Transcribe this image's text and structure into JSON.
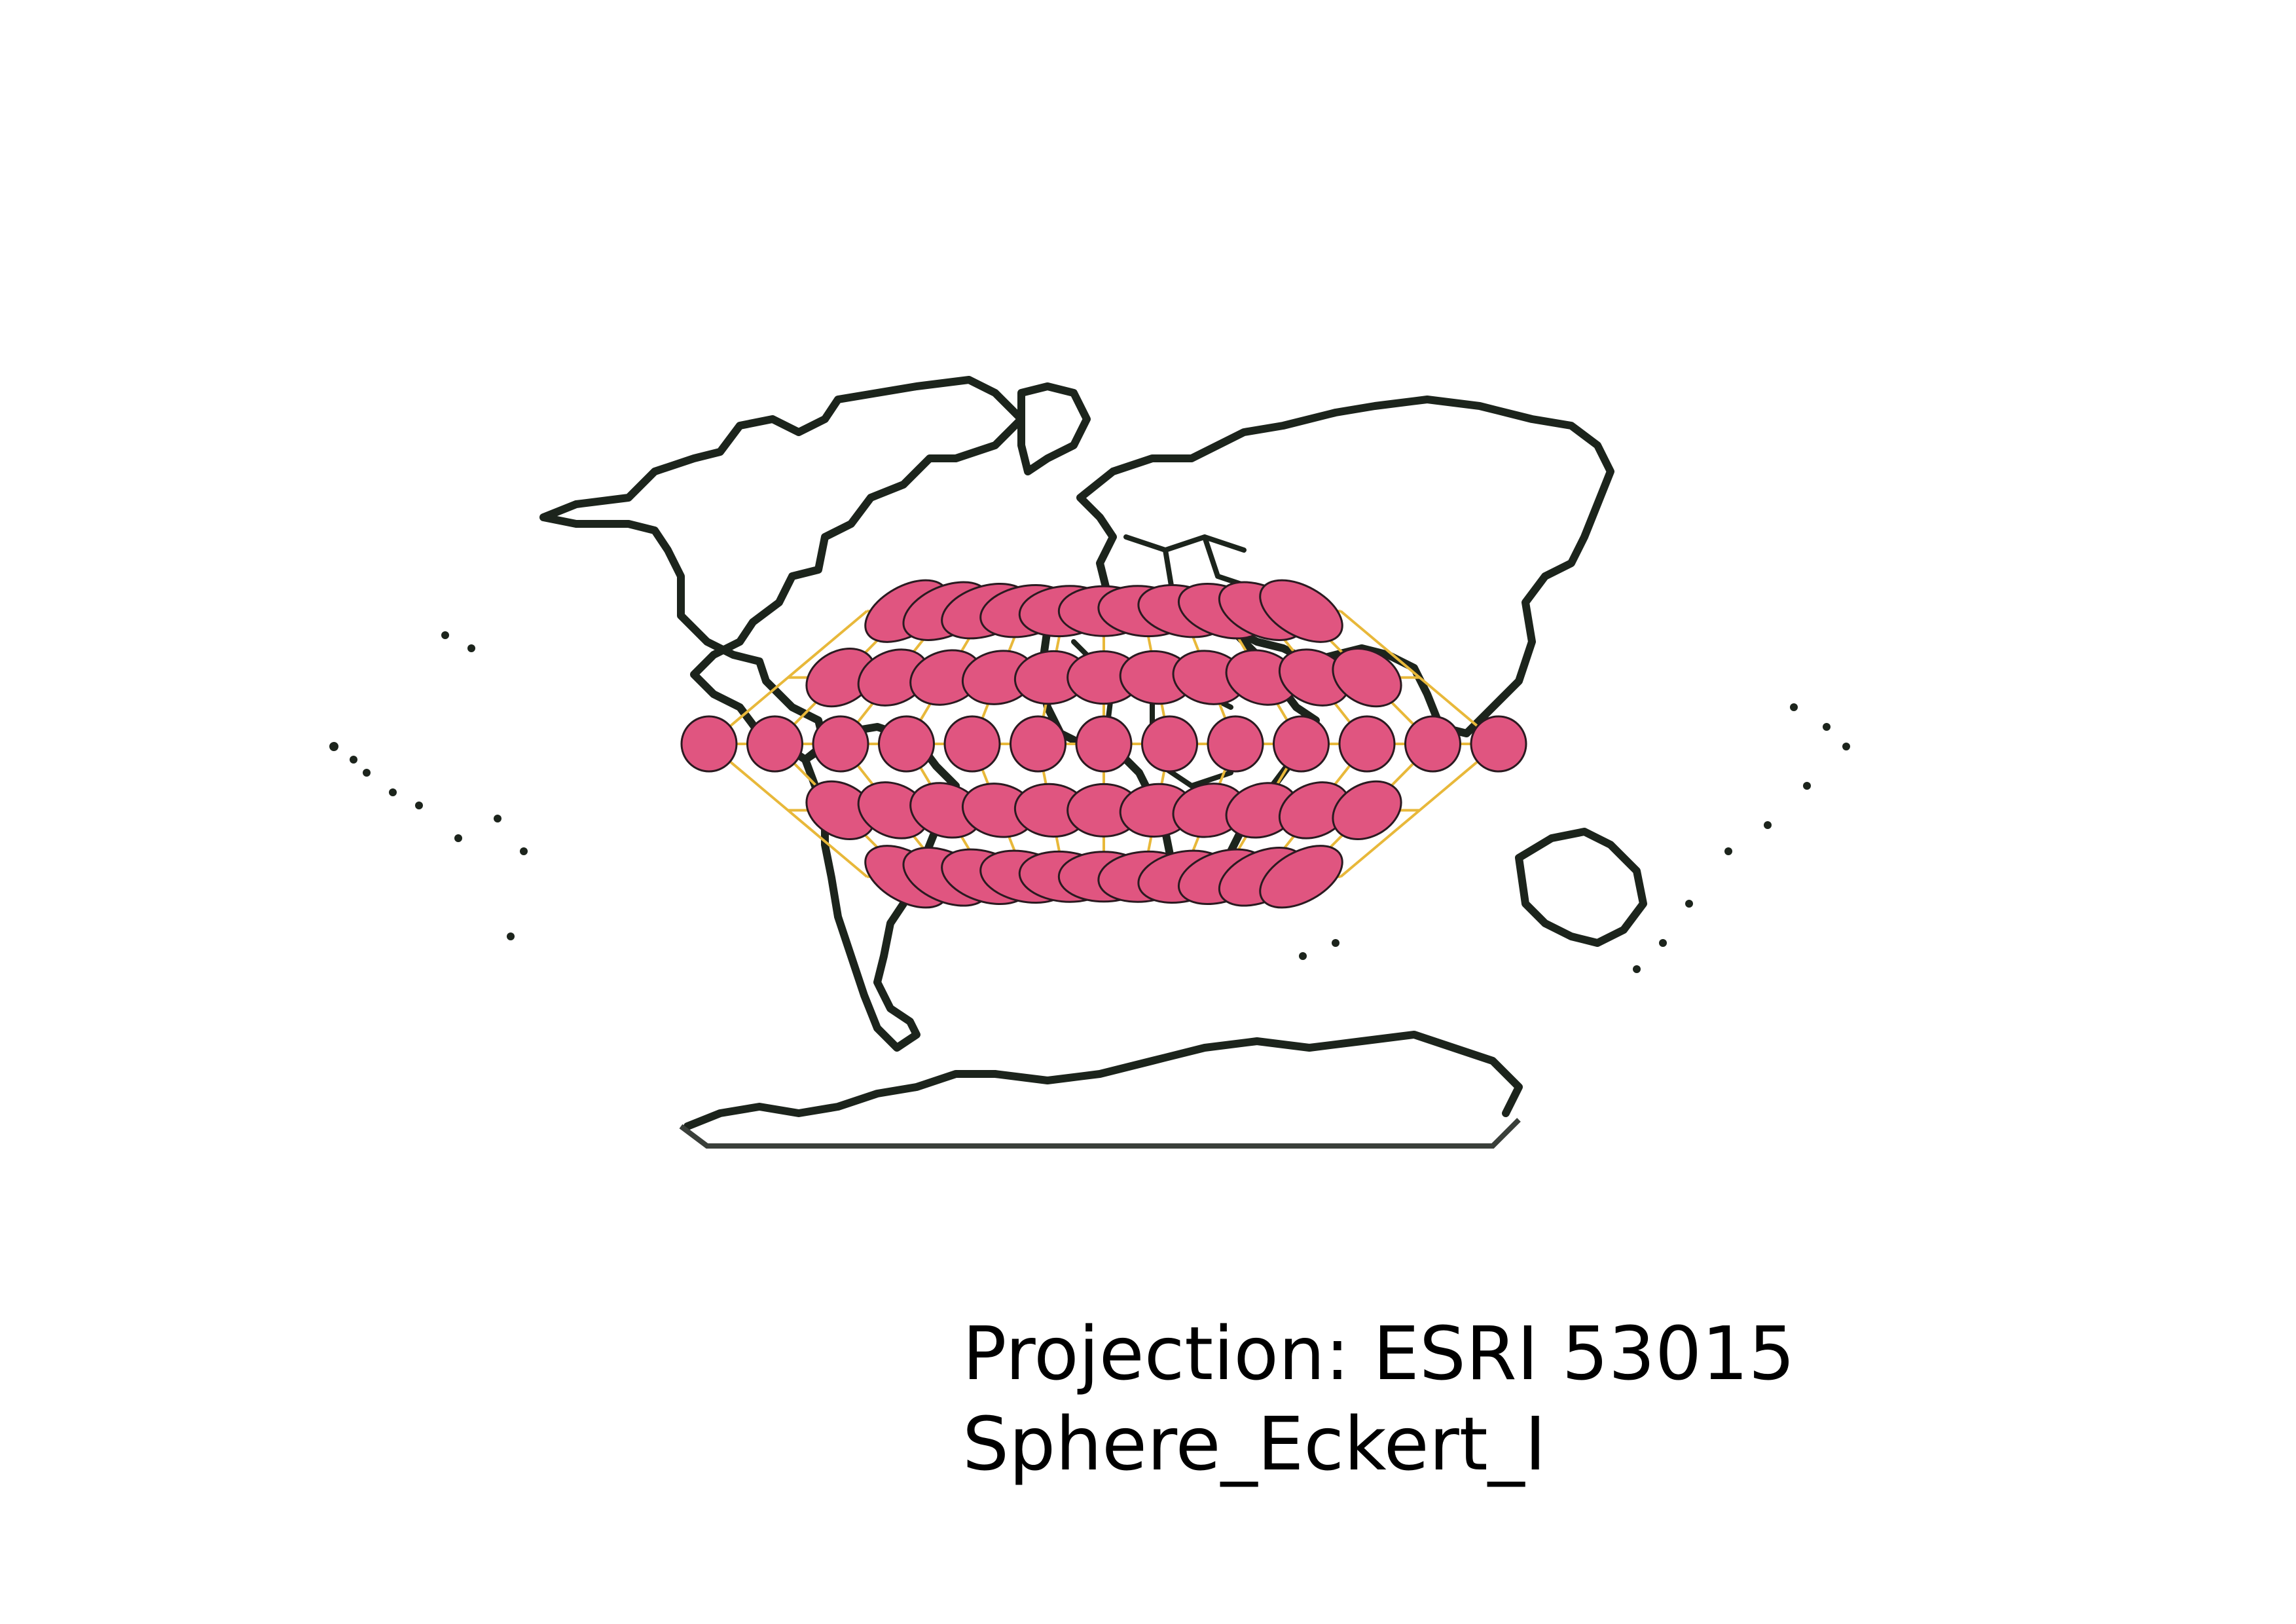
{
  "caption": {
    "line1": "Projection: ESRI 53015",
    "line2": "Sphere_Eckert_I"
  },
  "map": {
    "projection": "Eckert I",
    "graticule_color": "#e8b83a",
    "indicatrix_fill": "#e05580",
    "indicatrix_stroke": "#2a1a20",
    "coastline_color": "#1c241c",
    "indicatrix_longitudes": [
      -150,
      -120,
      -90,
      -60,
      -30,
      0,
      30,
      60,
      90,
      120,
      150
    ],
    "indicatrix_latitudes": [
      60,
      30,
      0,
      -30,
      -60
    ]
  }
}
